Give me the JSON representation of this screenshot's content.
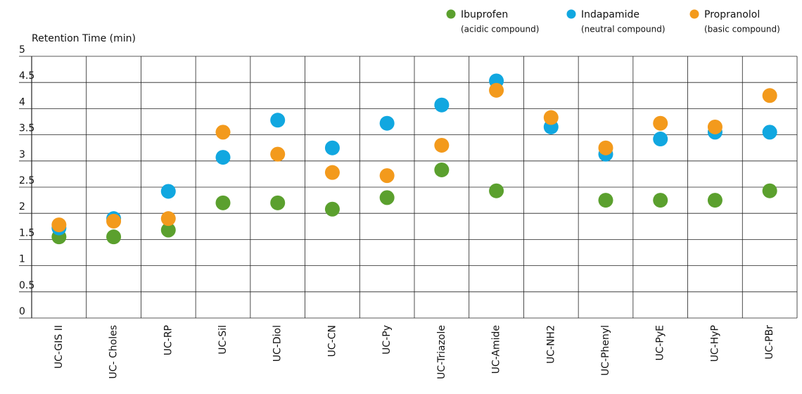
{
  "chart_data": {
    "type": "scatter",
    "y_label": "Retention Time (min)",
    "categories": [
      "UC-GIS II",
      "UC- Choles",
      "UC-RP",
      "UC-Sil",
      "UC-Diol",
      "UC-CN",
      "UC-Py",
      "UC-Triazole",
      "UC-Amide",
      "UC-NH2",
      "UC-Phenyl",
      "UC-PyE",
      "UC-HyP",
      "UC-PBr"
    ],
    "series": [
      {
        "name": "Ibuprofen",
        "description": "(acidic compound)",
        "color": "#5ba02e",
        "values": [
          1.55,
          1.55,
          1.68,
          2.2,
          2.2,
          2.08,
          2.3,
          2.83,
          2.43,
          null,
          2.25,
          2.25,
          2.25,
          2.43
        ]
      },
      {
        "name": "Indapamide",
        "description": "(neutral compound)",
        "color": "#11a7e0",
        "values": [
          1.72,
          1.9,
          2.42,
          3.07,
          3.78,
          3.25,
          3.72,
          4.07,
          4.53,
          3.65,
          3.13,
          3.42,
          3.55,
          3.55
        ]
      },
      {
        "name": "Propranolol",
        "description": "(basic compound)",
        "color": "#f39a1c",
        "values": [
          1.78,
          1.85,
          1.9,
          3.55,
          3.13,
          2.78,
          2.72,
          3.3,
          4.35,
          3.83,
          3.25,
          3.72,
          3.65,
          4.25
        ]
      }
    ],
    "ylim": [
      0,
      5
    ],
    "yticks": [
      0,
      0.5,
      1,
      1.5,
      2,
      2.5,
      3,
      3.5,
      4,
      4.5,
      5
    ],
    "grid": true
  }
}
